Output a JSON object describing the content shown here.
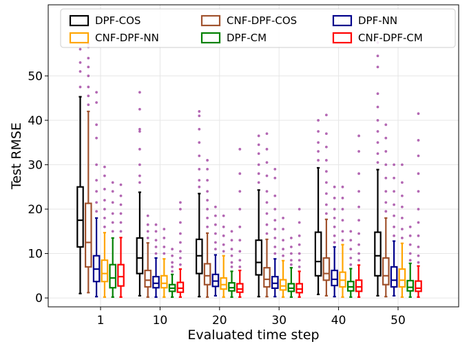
{
  "chart_data": {
    "type": "boxplot",
    "xlabel": "Evaluated time step",
    "ylabel": "Test RMSE",
    "categories": [
      "1",
      "10",
      "20",
      "30",
      "40",
      "50"
    ],
    "ylim": [
      -2,
      66
    ],
    "yticks": [
      0,
      10,
      20,
      30,
      40,
      50
    ],
    "grid": true,
    "legend": {
      "placement": "top",
      "columns": 3
    },
    "outlier_color": "#a64ca6",
    "series": [
      {
        "name": "DPF-COS",
        "color": "#000000",
        "boxes": [
          {
            "whisker_low": 1.0,
            "q1": 11.5,
            "median": 17.5,
            "q3": 25.0,
            "whisker_high": 45.3,
            "outliers": [
              47.5,
              51.0,
              53.0,
              56.0
            ]
          },
          {
            "whisker_low": 0.5,
            "q1": 5.5,
            "median": 9.0,
            "q3": 13.5,
            "whisker_high": 23.8,
            "outliers": [
              26.0,
              27.5,
              30.0,
              33.5,
              37.5,
              38.0,
              42.5,
              46.3
            ]
          },
          {
            "whisker_low": 0.3,
            "q1": 5.5,
            "median": 9.5,
            "q3": 13.2,
            "whisker_high": 23.5,
            "outliers": [
              25.0,
              26.5,
              29.0,
              32.0,
              35.0,
              38.0,
              41.0,
              42.0
            ]
          },
          {
            "whisker_low": 0.3,
            "q1": 5.2,
            "median": 8.0,
            "q3": 13.0,
            "whisker_high": 24.3,
            "outliers": [
              26.0,
              28.0,
              30.0,
              32.5,
              34.5,
              36.5
            ]
          },
          {
            "whisker_low": 0.8,
            "q1": 5.0,
            "median": 8.2,
            "q3": 14.8,
            "whisker_high": 29.3,
            "outliers": [
              31.0,
              33.0,
              35.0,
              37.5,
              40.0
            ]
          },
          {
            "whisker_low": 0.5,
            "q1": 5.0,
            "median": 9.5,
            "q3": 14.8,
            "whisker_high": 28.9,
            "outliers": [
              30.5,
              32.5,
              35.0,
              37.5,
              40.0,
              43.0,
              46.0,
              52.0,
              54.5,
              57.5
            ]
          }
        ]
      },
      {
        "name": "CNF-DPF-COS",
        "color": "#a0522d",
        "boxes": [
          {
            "whisker_low": 1.2,
            "q1": 7.0,
            "median": 12.5,
            "q3": 21.3,
            "whisker_high": 42.0,
            "outliers": [
              43.5,
              45.5,
              47.5,
              50.0,
              52.0,
              54.0,
              56.5,
              57.2
            ]
          },
          {
            "whisker_low": 0.2,
            "q1": 2.5,
            "median": 4.0,
            "q3": 6.2,
            "whisker_high": 12.4,
            "outliers": [
              13.5,
              15.0,
              16.5,
              18.5
            ]
          },
          {
            "whisker_low": 0.2,
            "q1": 3.0,
            "median": 5.0,
            "q3": 7.7,
            "whisker_high": 14.6,
            "outliers": [
              16.0,
              18.0,
              20.0,
              22.0,
              24.0,
              26.5,
              29.0,
              31.0
            ]
          },
          {
            "whisker_low": 0.3,
            "q1": 2.5,
            "median": 4.2,
            "q3": 6.8,
            "whisker_high": 13.2,
            "outliers": [
              14.5,
              16.5,
              19.0,
              21.5,
              24.0,
              27.5,
              30.5,
              33.5,
              37.0
            ]
          },
          {
            "whisker_low": 0.5,
            "q1": 4.0,
            "median": 5.5,
            "q3": 9.0,
            "whisker_high": 17.7,
            "outliers": [
              19.0,
              21.0,
              23.5,
              26.0,
              28.5,
              31.0,
              34.0,
              37.0,
              41.2
            ]
          },
          {
            "whisker_low": 0.3,
            "q1": 3.0,
            "median": 5.0,
            "q3": 9.0,
            "whisker_high": 18.0,
            "outliers": [
              19.5,
              21.5,
              24.0,
              27.0,
              30.0,
              33.0,
              36.0,
              39.0
            ]
          }
        ]
      },
      {
        "name": "DPF-NN",
        "color": "#00008b",
        "boxes": [
          {
            "whisker_low": 0.3,
            "q1": 3.7,
            "median": 6.5,
            "q3": 9.5,
            "whisker_high": 18.0,
            "outliers": [
              19.5,
              21.5,
              24.0,
              26.5,
              30.0,
              36.0,
              39.0,
              44.0,
              46.3
            ]
          },
          {
            "whisker_low": 0.2,
            "q1": 2.3,
            "median": 3.3,
            "q3": 4.8,
            "whisker_high": 9.0,
            "outliers": [
              10.0,
              11.5,
              13.0,
              15.0,
              16.5
            ]
          },
          {
            "whisker_low": 0.5,
            "q1": 2.6,
            "median": 3.8,
            "q3": 5.3,
            "whisker_high": 9.7,
            "outliers": [
              11.0,
              12.5,
              14.5,
              16.5,
              18.5,
              20.5
            ]
          },
          {
            "whisker_low": 0.3,
            "q1": 2.2,
            "median": 3.3,
            "q3": 4.8,
            "whisker_high": 8.8,
            "outliers": [
              10.0,
              11.5,
              13.5,
              15.5,
              17.5,
              20.0,
              23.0,
              27.0,
              29.0
            ]
          },
          {
            "whisker_low": 0.3,
            "q1": 2.8,
            "median": 4.2,
            "q3": 6.2,
            "whisker_high": 11.5,
            "outliers": [
              12.5,
              14.0,
              16.0,
              18.0,
              20.0,
              22.5,
              25.0
            ]
          },
          {
            "whisker_low": 0.5,
            "q1": 2.5,
            "median": 4.0,
            "q3": 7.0,
            "whisker_high": 12.8,
            "outliers": [
              14.0,
              16.0,
              18.5,
              21.0,
              24.0,
              27.0,
              30.0
            ]
          }
        ]
      },
      {
        "name": "CNF-DPF-NN",
        "color": "#ffa500",
        "boxes": [
          {
            "whisker_low": 0.2,
            "q1": 3.7,
            "median": 5.5,
            "q3": 8.5,
            "whisker_high": 14.7,
            "outliers": [
              16.0,
              18.0,
              20.0,
              22.0,
              24.5,
              27.5,
              29.5
            ]
          },
          {
            "whisker_low": 0.2,
            "q1": 2.3,
            "median": 3.3,
            "q3": 5.0,
            "whisker_high": 8.8,
            "outliers": [
              10.0,
              11.5,
              13.5,
              15.5
            ]
          },
          {
            "whisker_low": 0.2,
            "q1": 2.0,
            "median": 3.0,
            "q3": 4.5,
            "whisker_high": 9.5,
            "outliers": [
              10.5,
              12.0,
              14.0,
              16.0,
              18.5
            ]
          },
          {
            "whisker_low": 0.2,
            "q1": 1.8,
            "median": 2.7,
            "q3": 4.1,
            "whisker_high": 8.4,
            "outliers": [
              9.5,
              11.0,
              13.0,
              15.5,
              18.0
            ]
          },
          {
            "whisker_low": 0.2,
            "q1": 2.5,
            "median": 4.0,
            "q3": 5.8,
            "whisker_high": 12.0,
            "outliers": [
              13.0,
              15.0,
              17.5,
              20.0,
              22.5,
              25.0
            ]
          },
          {
            "whisker_low": 0.2,
            "q1": 2.5,
            "median": 4.0,
            "q3": 6.5,
            "whisker_high": 12.3,
            "outliers": [
              13.5,
              15.5,
              18.0,
              20.5,
              23.0,
              26.0,
              30.0
            ]
          }
        ]
      },
      {
        "name": "DPF-CM",
        "color": "#008000",
        "boxes": [
          {
            "whisker_low": 0.2,
            "q1": 2.3,
            "median": 4.5,
            "q3": 7.5,
            "whisker_high": 13.5,
            "outliers": [
              15.0,
              17.0,
              19.0,
              21.5,
              24.0,
              26.0
            ]
          },
          {
            "whisker_low": 0.2,
            "q1": 1.5,
            "median": 2.2,
            "q3": 3.0,
            "whisker_high": 5.3,
            "outliers": [
              6.0,
              7.0,
              8.0,
              9.5,
              11.0
            ]
          },
          {
            "whisker_low": 0.2,
            "q1": 1.6,
            "median": 2.3,
            "q3": 3.4,
            "whisker_high": 6.0,
            "outliers": [
              7.0,
              8.0,
              9.5,
              11.0,
              13.0,
              15.0
            ]
          },
          {
            "whisker_low": 0.2,
            "q1": 1.5,
            "median": 2.2,
            "q3": 3.2,
            "whisker_high": 6.8,
            "outliers": [
              7.5,
              8.5,
              10.0,
              11.5,
              13.5
            ]
          },
          {
            "whisker_low": 0.2,
            "q1": 1.6,
            "median": 2.5,
            "q3": 3.7,
            "whisker_high": 6.6,
            "outliers": [
              7.5,
              9.0,
              11.0,
              13.0,
              15.0
            ]
          },
          {
            "whisker_low": 0.2,
            "q1": 1.6,
            "median": 2.4,
            "q3": 3.9,
            "whisker_high": 7.8,
            "outliers": [
              8.5,
              10.0,
              12.0,
              14.0,
              16.0
            ]
          }
        ]
      },
      {
        "name": "CNF-DPF-CM",
        "color": "#ff0000",
        "boxes": [
          {
            "whisker_low": 0.2,
            "q1": 2.7,
            "median": 4.8,
            "q3": 7.5,
            "whisker_high": 13.6,
            "outliers": [
              15.0,
              17.0,
              19.0,
              21.0,
              23.0,
              25.5
            ]
          },
          {
            "whisker_low": 0.2,
            "q1": 1.3,
            "median": 2.2,
            "q3": 3.5,
            "whisker_high": 6.5,
            "outliers": [
              7.5,
              9.0,
              10.5,
              12.5,
              14.5,
              17.0,
              20.0,
              21.5
            ]
          },
          {
            "whisker_low": 0.2,
            "q1": 1.3,
            "median": 2.0,
            "q3": 3.2,
            "whisker_high": 6.2,
            "outliers": [
              7.0,
              8.5,
              10.5,
              13.0,
              16.0,
              20.0,
              24.0,
              28.0,
              33.5
            ]
          },
          {
            "whisker_low": 0.2,
            "q1": 1.2,
            "median": 2.0,
            "q3": 3.2,
            "whisker_high": 6.0,
            "outliers": [
              7.0,
              8.5,
              10.0,
              12.0,
              14.0,
              17.0,
              20.0
            ]
          },
          {
            "whisker_low": 0.2,
            "q1": 1.5,
            "median": 2.5,
            "q3": 4.0,
            "whisker_high": 7.4,
            "outliers": [
              8.5,
              10.0,
              12.0,
              14.5,
              17.5,
              20.5,
              24.0,
              28.0,
              33.0,
              36.5
            ]
          },
          {
            "whisker_low": 0.2,
            "q1": 1.5,
            "median": 2.2,
            "q3": 3.8,
            "whisker_high": 7.2,
            "outliers": [
              8.0,
              9.5,
              11.5,
              14.0,
              17.0,
              20.0,
              24.0,
              28.0,
              32.0,
              35.5,
              41.5
            ]
          }
        ]
      }
    ]
  }
}
